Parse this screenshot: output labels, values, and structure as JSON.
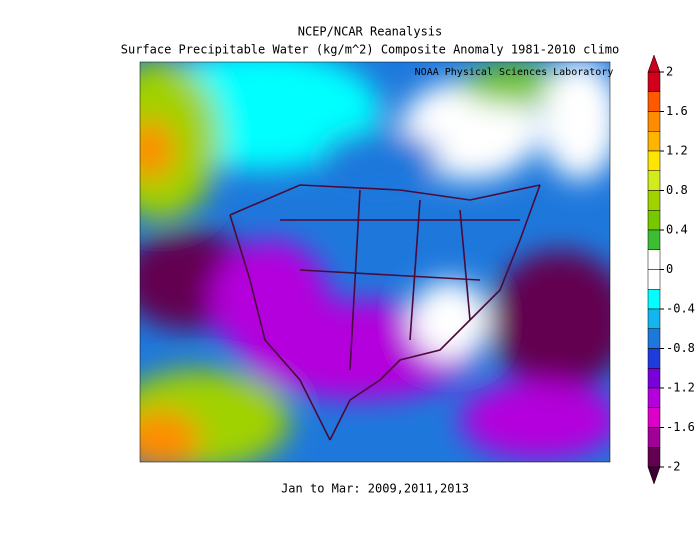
{
  "title": [
    "NCEP/NCAR Reanalysis",
    "Surface Precipitable Water (kg/m^2) Composite Anomaly 1981-2010 climo"
  ],
  "attribution": "NOAA Physical Sciences Laboratory",
  "period": "Jan to Mar: 2009,2011,2013",
  "colorbar": {
    "clim": [
      -2,
      2
    ],
    "ticks": [
      2,
      1.6,
      1.2,
      0.8,
      0.4,
      0,
      -0.4,
      -0.8,
      -1.2,
      -1.6,
      -2
    ],
    "colors": [
      "#d2001a",
      "#ff5a00",
      "#ff8c00",
      "#ffb400",
      "#ffe600",
      "#d2eb1e",
      "#a0d200",
      "#78c800",
      "#3cbe32",
      "#ffffff",
      "#ffffff",
      "#00ffff",
      "#14b4f0",
      "#1e78dc",
      "#1e3cdc",
      "#7800dc",
      "#b400dc",
      "#dc00c8",
      "#a00096",
      "#640050"
    ],
    "over_color": "#c8001e",
    "under_color": "#3c0032"
  }
}
